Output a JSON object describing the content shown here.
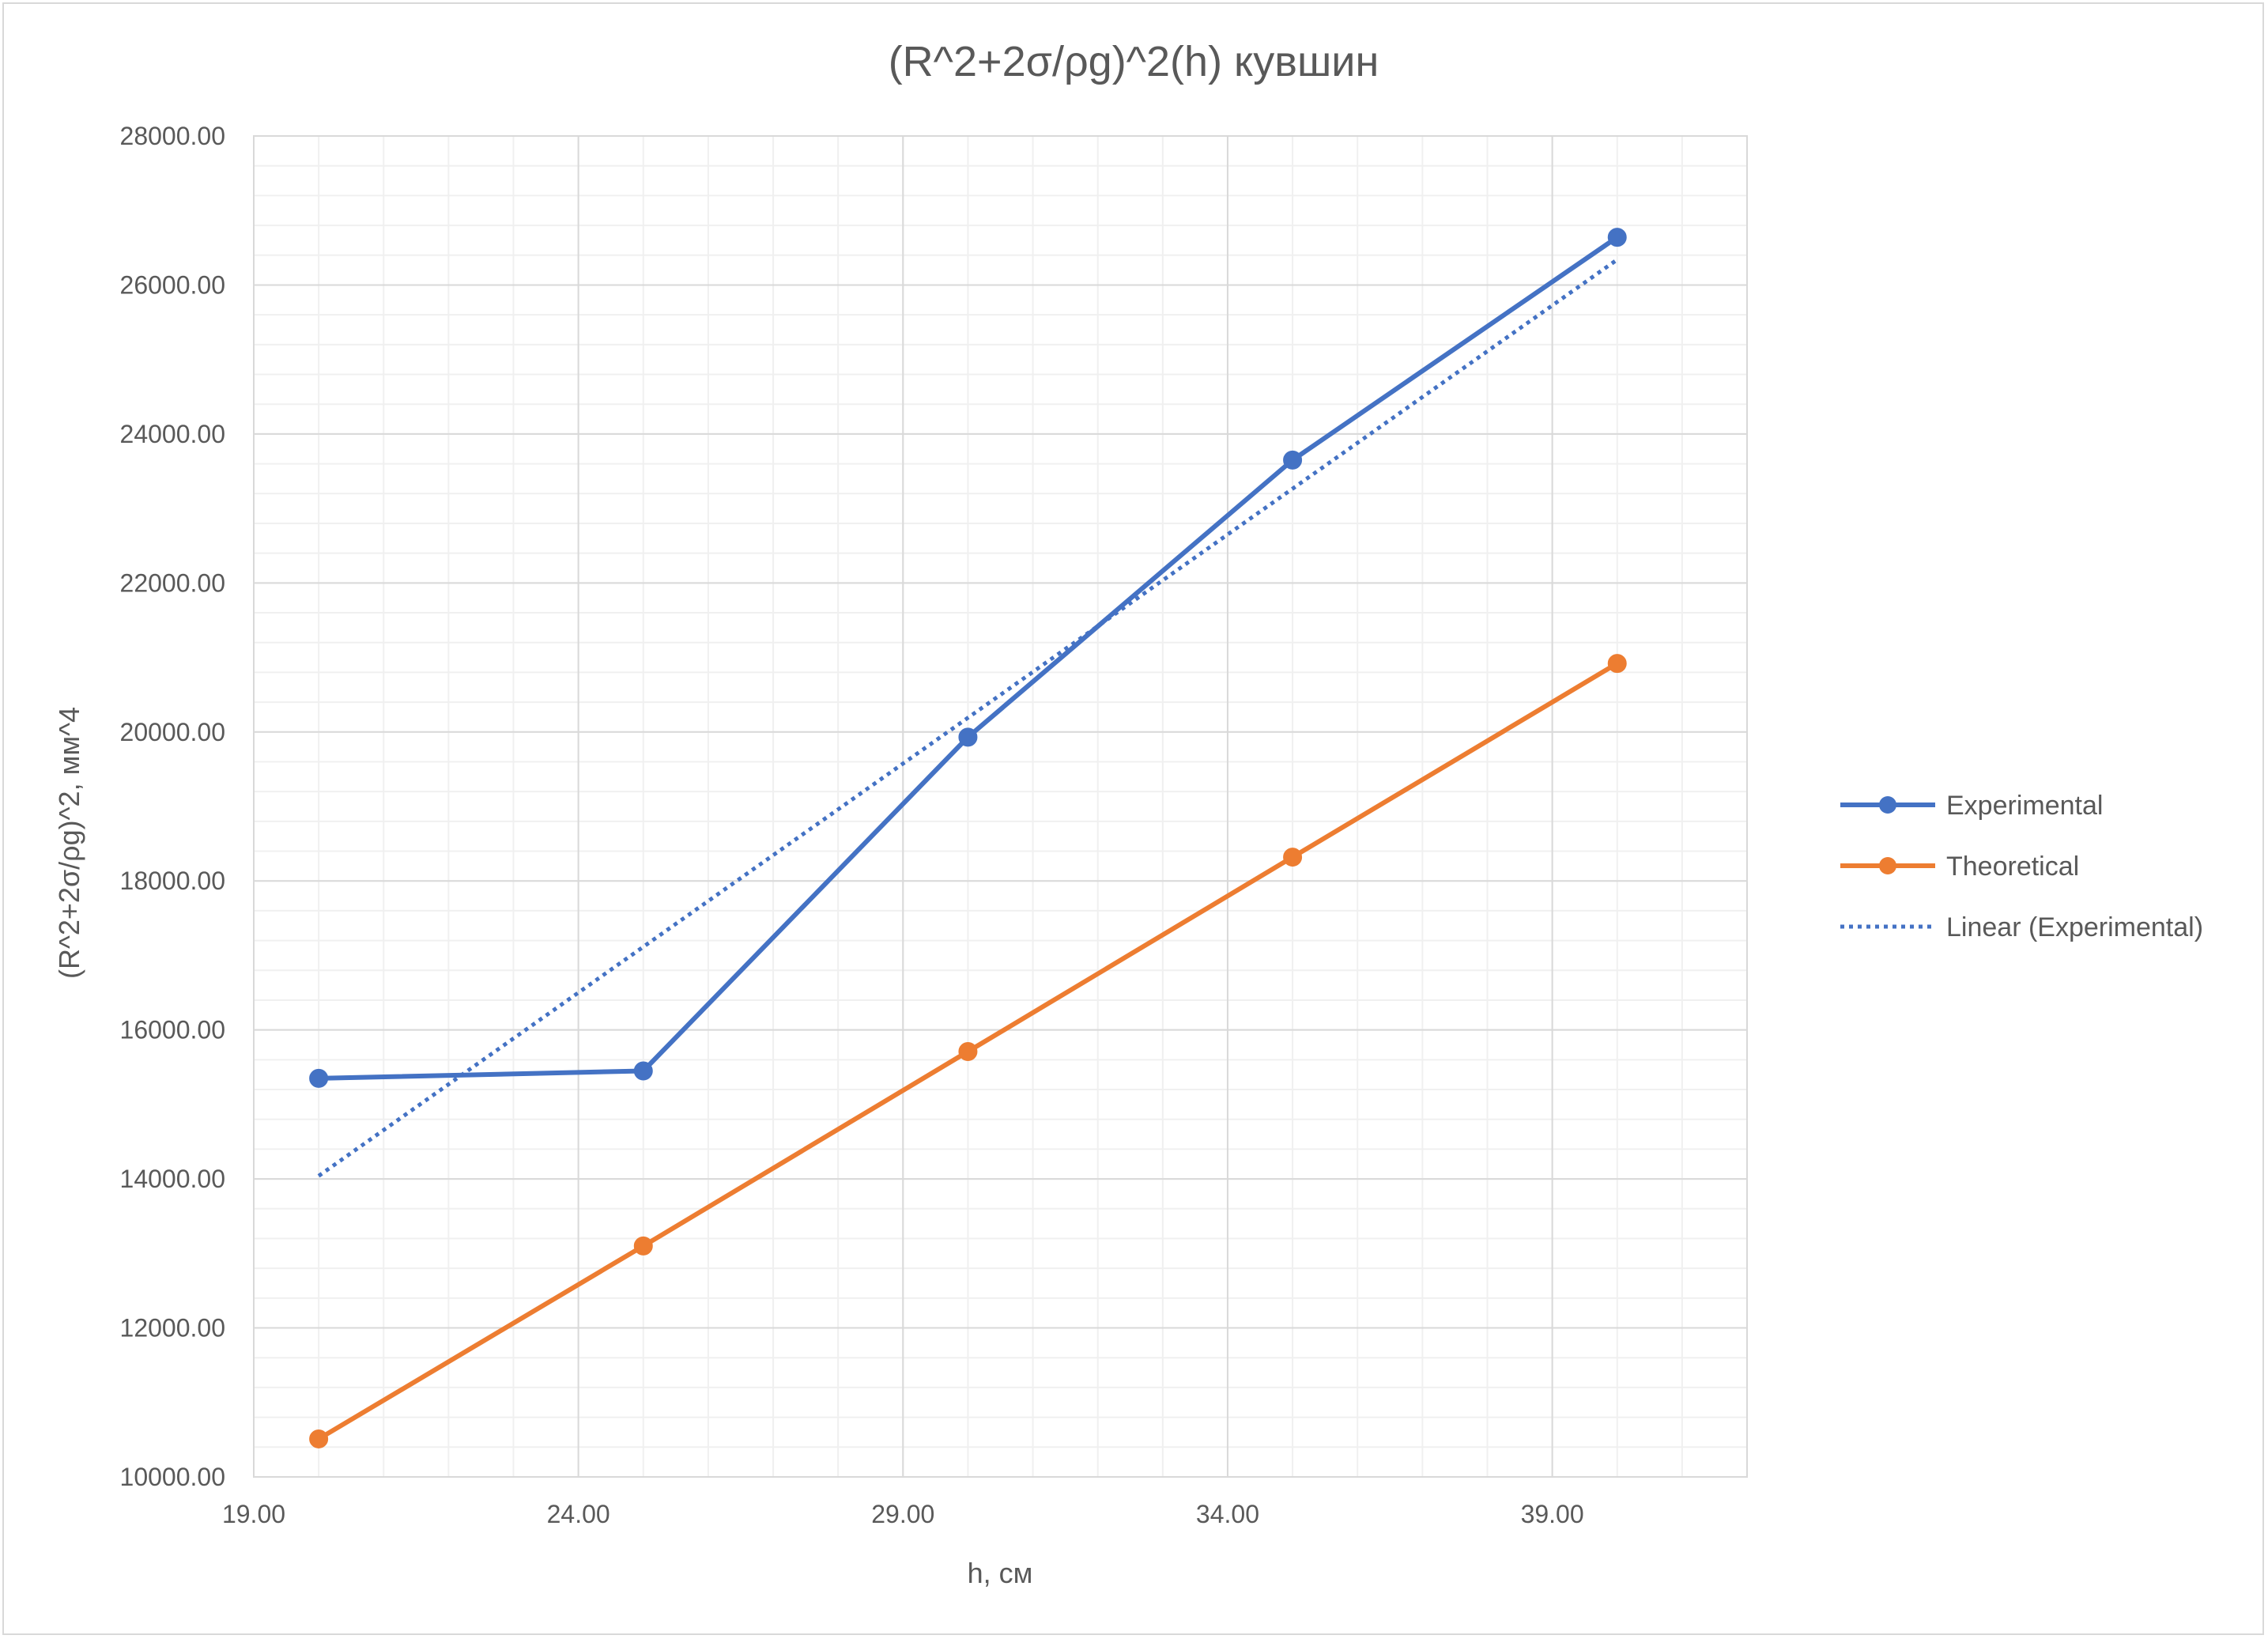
{
  "chart_data": {
    "type": "line",
    "title": "(R^2+2σ/ρg)^2(h) кувшин",
    "xlabel": "h, см",
    "ylabel": "(R^2+2σ/ρg)^2, мм^4",
    "xlim": [
      19,
      42
    ],
    "ylim": [
      10000,
      28000
    ],
    "x_ticks": [
      19,
      24,
      29,
      34,
      39
    ],
    "y_ticks": [
      10000,
      12000,
      14000,
      16000,
      18000,
      20000,
      22000,
      24000,
      26000,
      28000
    ],
    "tick_decimals": 2,
    "grid": "major and minor",
    "legend_position": "right",
    "series": [
      {
        "name": "Experimental",
        "color": "#4472C4",
        "style": "solid-with-markers",
        "x": [
          20,
          25,
          30,
          35,
          40
        ],
        "values": [
          15350,
          15450,
          19930,
          23650,
          26640
        ]
      },
      {
        "name": "Theoretical",
        "color": "#ED7D31",
        "style": "solid-with-markers",
        "x": [
          20,
          25,
          30,
          35,
          40
        ],
        "values": [
          10510,
          13100,
          15710,
          18320,
          20920
        ]
      },
      {
        "name": "Linear (Experimental)",
        "color": "#4472C4",
        "style": "dotted-trendline",
        "x": [
          20,
          40
        ],
        "values": [
          14040,
          26340
        ]
      }
    ]
  }
}
